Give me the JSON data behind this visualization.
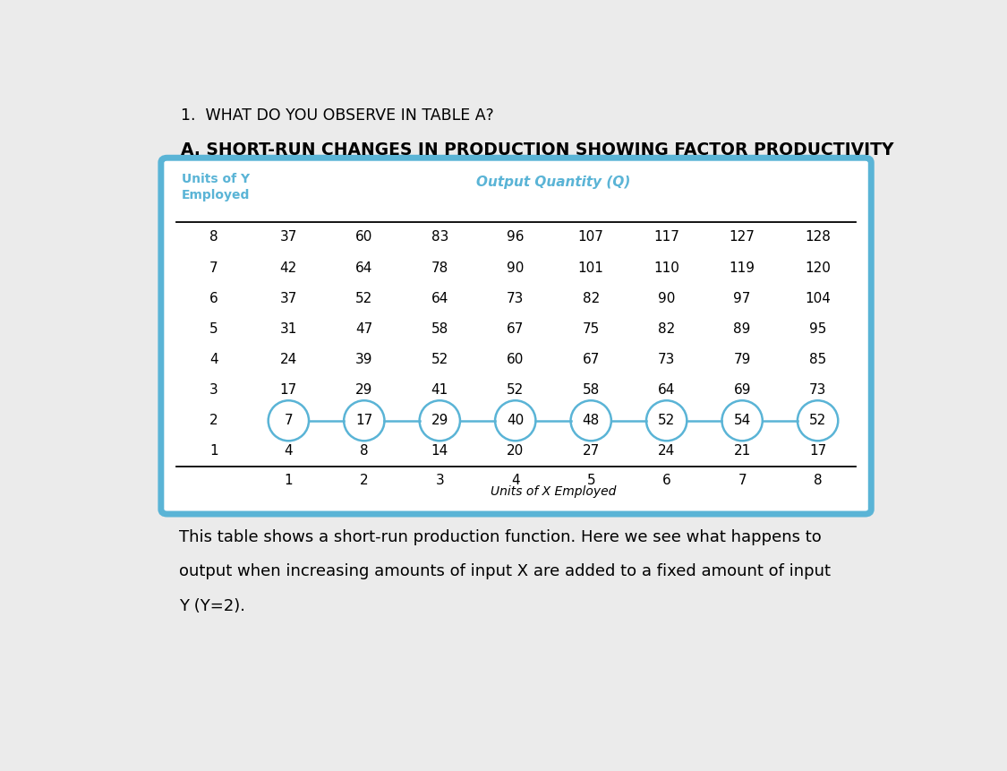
{
  "title_question": "1.  WHAT DO YOU OBSERVE IN TABLE A?",
  "title_table": "A. SHORT-RUN CHANGES IN PRODUCTION SHOWING FACTOR PRODUCTIVITY",
  "x_labels": [
    "1",
    "2",
    "3",
    "4",
    "5",
    "6",
    "7",
    "8"
  ],
  "y_labels": [
    "8",
    "7",
    "6",
    "5",
    "4",
    "3",
    "2",
    "1"
  ],
  "table_data": [
    [
      37,
      60,
      83,
      96,
      107,
      117,
      127,
      128
    ],
    [
      42,
      64,
      78,
      90,
      101,
      110,
      119,
      120
    ],
    [
      37,
      52,
      64,
      73,
      82,
      90,
      97,
      104
    ],
    [
      31,
      47,
      58,
      67,
      75,
      82,
      89,
      95
    ],
    [
      24,
      39,
      52,
      60,
      67,
      73,
      79,
      85
    ],
    [
      17,
      29,
      41,
      52,
      58,
      64,
      69,
      73
    ],
    [
      7,
      17,
      29,
      40,
      48,
      52,
      54,
      52
    ],
    [
      4,
      8,
      14,
      20,
      27,
      24,
      21,
      17
    ]
  ],
  "circled_row": 6,
  "circle_color": "#5ab4d6",
  "header_color": "#5ab4d6",
  "border_color": "#5ab4d6",
  "page_bg": "#ebebeb",
  "description_line1": "This table shows a short-run production function. Here we see what happens to",
  "description_line2": "output when increasing amounts of input X are added to a fixed amount of input",
  "description_line3": "Y (Y=2)."
}
